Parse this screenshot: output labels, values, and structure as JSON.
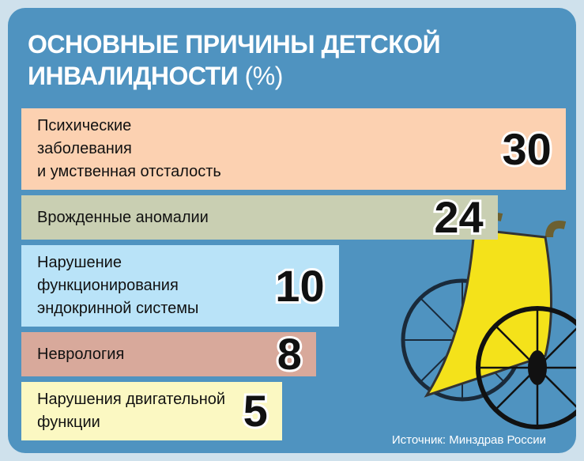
{
  "chart_data": {
    "type": "bar",
    "orientation": "horizontal",
    "title": "ОСНОВНЫЕ ПРИЧИНЫ ДЕТСКОЙ ИНВАЛИДНОСТИ",
    "unit": "(%)",
    "categories": [
      "Психические\nзаболевания\nи умственная отсталость",
      "Врожденные аномалии",
      "Нарушение\nфункционирования\nэндокринной системы",
      "Неврология",
      "Нарушения двигательной\nфункции"
    ],
    "values": [
      30,
      24,
      10,
      8,
      5
    ],
    "colors": [
      "#fcd1b1",
      "#c9cfb2",
      "#b9e3f8",
      "#d8a99b",
      "#fbf8c2"
    ],
    "source": "Источник: Минздрав России"
  }
}
